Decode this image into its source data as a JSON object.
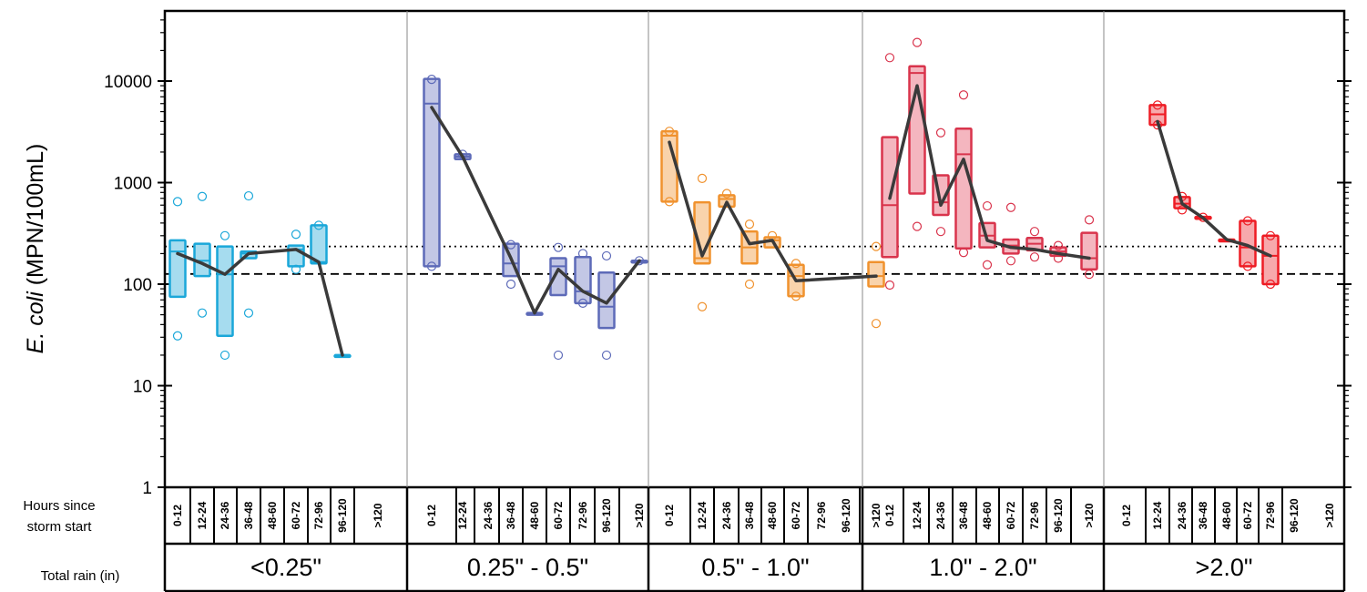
{
  "chart_data": {
    "type": "box",
    "ylabel_italic": "E. coli",
    "ylabel_rest": " (MPN/100mL)",
    "yscale": "log",
    "ylim": [
      1,
      50000
    ],
    "yticks": [
      1,
      10,
      100,
      1000,
      10000
    ],
    "ytick_labels": [
      "1",
      "10",
      "100",
      "1000",
      "10000"
    ],
    "reference_lines": [
      {
        "style": "dotted",
        "value": 235
      },
      {
        "style": "dashed",
        "value": 126
      }
    ],
    "hours_label_line1": "Hours since",
    "hours_label_line2": "storm start",
    "rain_label": "Total rain (in)",
    "hour_bins": [
      "0-12",
      "12-24",
      "24-36",
      "36-48",
      "48-60",
      "60-72",
      "72-96",
      "96-120",
      ">120"
    ],
    "groups": [
      {
        "rain": "<0.25\"",
        "color": "#1aa7d9",
        "fill": "#a6dcef",
        "boxes": [
          {
            "bin": "0-12",
            "q1": 75,
            "median": 210,
            "q3": 270,
            "outliers": [
              650,
              31
            ]
          },
          {
            "bin": "12-24",
            "q1": 120,
            "median": 170,
            "q3": 250,
            "outliers": [
              730,
              52
            ]
          },
          {
            "bin": "24-36",
            "q1": 31,
            "median": 125,
            "q3": 235,
            "outliers": [
              300,
              20
            ]
          },
          {
            "bin": "36-48",
            "q1": 180,
            "median": 200,
            "q3": 210,
            "outliers": [
              740,
              52
            ]
          },
          {
            "bin": "60-72",
            "q1": 150,
            "median": 220,
            "q3": 240,
            "outliers": [
              310,
              140
            ]
          },
          {
            "bin": "72-96",
            "q1": 160,
            "median": 165,
            "q3": 380,
            "outliers": [
              380
            ]
          },
          {
            "bin": "96-120",
            "q1": 20,
            "median": 20,
            "q3": 20,
            "outliers": []
          }
        ],
        "mean_line": [
          {
            "bin": "0-12",
            "value": 200
          },
          {
            "bin": "12-24",
            "value": 160
          },
          {
            "bin": "24-36",
            "value": 125
          },
          {
            "bin": "36-48",
            "value": 200
          },
          {
            "bin": "60-72",
            "value": 220
          },
          {
            "bin": "72-96",
            "value": 165
          },
          {
            "bin": "96-120",
            "value": 20
          }
        ]
      },
      {
        "rain": "0.25\" - 0.5\"",
        "color": "#5d6ab8",
        "fill": "#c3c7e5",
        "boxes": [
          {
            "bin": "0-12",
            "q1": 150,
            "median": 6000,
            "q3": 10500,
            "outliers": [
              10400,
              150
            ]
          },
          {
            "bin": "12-24",
            "q1": 1700,
            "median": 1800,
            "q3": 1900,
            "outliers": [
              1900
            ]
          },
          {
            "bin": "36-48",
            "q1": 120,
            "median": 160,
            "q3": 250,
            "outliers": [
              245,
              100
            ]
          },
          {
            "bin": "48-60",
            "q1": 52,
            "median": 52,
            "q3": 52,
            "outliers": []
          },
          {
            "bin": "60-72",
            "q1": 78,
            "median": 150,
            "q3": 180,
            "outliers": [
              230,
              20
            ]
          },
          {
            "bin": "72-96",
            "q1": 65,
            "median": 85,
            "q3": 185,
            "outliers": [
              200,
              65
            ]
          },
          {
            "bin": "96-120",
            "q1": 37,
            "median": 60,
            "q3": 130,
            "outliers": [
              190,
              20
            ]
          },
          {
            "bin": ">120",
            "q1": 170,
            "median": 170,
            "q3": 170,
            "outliers": [
              170
            ]
          }
        ],
        "mean_line": [
          {
            "bin": "0-12",
            "value": 5500
          },
          {
            "bin": "12-24",
            "value": 1800
          },
          {
            "bin": "36-48",
            "value": 180
          },
          {
            "bin": "48-60",
            "value": 52
          },
          {
            "bin": "60-72",
            "value": 140
          },
          {
            "bin": "72-96",
            "value": 85
          },
          {
            "bin": "96-120",
            "value": 65
          },
          {
            "bin": ">120",
            "value": 170
          }
        ]
      },
      {
        "rain": "0.5\" - 1.0\"",
        "color": "#f0922e",
        "fill": "#f9d3ab",
        "boxes": [
          {
            "bin": "0-12",
            "q1": 650,
            "median": 2900,
            "q3": 3200,
            "outliers": [
              3200,
              650
            ]
          },
          {
            "bin": "12-24",
            "q1": 160,
            "median": 180,
            "q3": 640,
            "outliers": [
              1100,
              60
            ]
          },
          {
            "bin": "24-36",
            "q1": 580,
            "median": 690,
            "q3": 750,
            "outliers": [
              780
            ]
          },
          {
            "bin": "36-48",
            "q1": 160,
            "median": 230,
            "q3": 330,
            "outliers": [
              390,
              100
            ]
          },
          {
            "bin": "48-60",
            "q1": 230,
            "median": 270,
            "q3": 290,
            "outliers": [
              300
            ]
          },
          {
            "bin": "60-72",
            "q1": 76,
            "median": 120,
            "q3": 155,
            "outliers": [
              160,
              76
            ]
          },
          {
            "bin": ">120",
            "q1": 95,
            "median": 120,
            "q3": 165,
            "outliers": [
              235,
              41
            ]
          }
        ],
        "mean_line": [
          {
            "bin": "0-12",
            "value": 2500
          },
          {
            "bin": "12-24",
            "value": 190
          },
          {
            "bin": "24-36",
            "value": 640
          },
          {
            "bin": "36-48",
            "value": 250
          },
          {
            "bin": "48-60",
            "value": 270
          },
          {
            "bin": "60-72",
            "value": 108
          },
          {
            "bin": ">120",
            "value": 120
          }
        ]
      },
      {
        "rain": "1.0\" - 2.0\"",
        "color": "#d9344c",
        "fill": "#f4b6bf",
        "boxes": [
          {
            "bin": "0-12",
            "q1": 185,
            "median": 600,
            "q3": 2800,
            "outliers": [
              17000,
              98
            ]
          },
          {
            "bin": "12-24",
            "q1": 780,
            "median": 12000,
            "q3": 14000,
            "outliers": [
              24000,
              370
            ]
          },
          {
            "bin": "24-36",
            "q1": 480,
            "median": 640,
            "q3": 1180,
            "outliers": [
              3100,
              330
            ]
          },
          {
            "bin": "36-48",
            "q1": 225,
            "median": 1900,
            "q3": 3400,
            "outliers": [
              7300,
              205
            ]
          },
          {
            "bin": "48-60",
            "q1": 230,
            "median": 300,
            "q3": 400,
            "outliers": [
              590,
              155
            ]
          },
          {
            "bin": "60-72",
            "q1": 200,
            "median": 240,
            "q3": 275,
            "outliers": [
              570,
              170
            ]
          },
          {
            "bin": "72-96",
            "q1": 215,
            "median": 250,
            "q3": 285,
            "outliers": [
              330,
              185
            ]
          },
          {
            "bin": "96-120",
            "q1": 190,
            "median": 210,
            "q3": 230,
            "outliers": [
              240,
              180
            ]
          },
          {
            "bin": ">120",
            "q1": 140,
            "median": 180,
            "q3": 320,
            "outliers": [
              430,
              125
            ]
          }
        ],
        "mean_line": [
          {
            "bin": "0-12",
            "value": 700
          },
          {
            "bin": "12-24",
            "value": 9000
          },
          {
            "bin": "24-36",
            "value": 600
          },
          {
            "bin": "36-48",
            "value": 1700
          },
          {
            "bin": "48-60",
            "value": 270
          },
          {
            "bin": "60-72",
            "value": 230
          },
          {
            "bin": "72-96",
            "value": 220
          },
          {
            "bin": "96-120",
            "value": 200
          },
          {
            "bin": ">120",
            "value": 180
          }
        ]
      },
      {
        "rain": ">2.0\"",
        "color": "#ee1c24",
        "fill": "#f7a9ac",
        "boxes": [
          {
            "bin": "12-24",
            "q1": 3700,
            "median": 4700,
            "q3": 5800,
            "outliers": [
              5800,
              3700
            ]
          },
          {
            "bin": "24-36",
            "q1": 560,
            "median": 620,
            "q3": 720,
            "outliers": [
              730,
              540
            ]
          },
          {
            "bin": "36-48",
            "q1": 440,
            "median": 450,
            "q3": 460,
            "outliers": [
              455
            ]
          },
          {
            "bin": "48-60",
            "q1": 275,
            "median": 275,
            "q3": 275,
            "outliers": []
          },
          {
            "bin": "60-72",
            "q1": 150,
            "median": 230,
            "q3": 420,
            "outliers": [
              420,
              150
            ]
          },
          {
            "bin": "72-96",
            "q1": 100,
            "median": 190,
            "q3": 300,
            "outliers": [
              300,
              100
            ]
          }
        ],
        "mean_line": [
          {
            "bin": "12-24",
            "value": 4000
          },
          {
            "bin": "24-36",
            "value": 620
          },
          {
            "bin": "36-48",
            "value": 450
          },
          {
            "bin": "48-60",
            "value": 275
          },
          {
            "bin": "60-72",
            "value": 240
          },
          {
            "bin": "72-96",
            "value": 190
          }
        ]
      }
    ]
  }
}
